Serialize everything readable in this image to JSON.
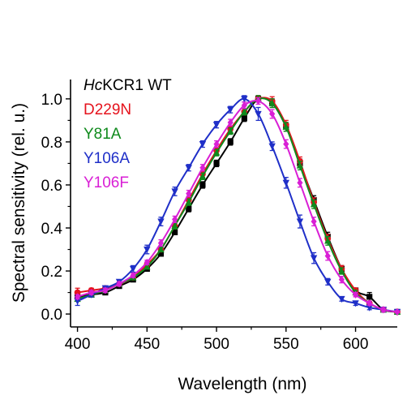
{
  "chart_data": {
    "type": "line",
    "xlabel": "Wavelength (nm)",
    "ylabel": "Spectral sensitivity (rel. u.)",
    "xlim": [
      395,
      630
    ],
    "ylim": [
      -0.06,
      1.09
    ],
    "xticks": [
      400,
      450,
      500,
      550,
      600
    ],
    "yticks": [
      0.0,
      0.2,
      0.4,
      0.6,
      0.8,
      1.0
    ],
    "legend_position": "top-left",
    "series": [
      {
        "name_prefix": "Hc",
        "name_suffix": "KCR1 WT",
        "color": "#000000",
        "marker": "square",
        "points": [
          [
            400,
            0.08,
            0.01
          ],
          [
            410,
            0.09,
            0.01
          ],
          [
            420,
            0.1,
            0.01
          ],
          [
            430,
            0.13,
            0.01
          ],
          [
            440,
            0.16,
            0.01
          ],
          [
            450,
            0.21,
            0.01
          ],
          [
            460,
            0.28,
            0.01
          ],
          [
            470,
            0.38,
            0.01
          ],
          [
            480,
            0.49,
            0.015
          ],
          [
            490,
            0.6,
            0.015
          ],
          [
            500,
            0.7,
            0.015
          ],
          [
            510,
            0.8,
            0.015
          ],
          [
            520,
            0.91,
            0.015
          ],
          [
            530,
            1.0,
            0.015
          ],
          [
            540,
            0.98,
            0.02
          ],
          [
            550,
            0.87,
            0.02
          ],
          [
            560,
            0.7,
            0.02
          ],
          [
            570,
            0.53,
            0.02
          ],
          [
            580,
            0.36,
            0.02
          ],
          [
            590,
            0.21,
            0.015
          ],
          [
            600,
            0.11,
            0.01
          ],
          [
            610,
            0.08,
            0.02
          ],
          [
            620,
            0.02,
            0.01
          ],
          [
            630,
            0.01,
            0.005
          ]
        ]
      },
      {
        "name": "D229N",
        "color": "#e5131d",
        "marker": "circle",
        "points": [
          [
            400,
            0.1,
            0.02
          ],
          [
            410,
            0.11,
            0.01
          ],
          [
            420,
            0.12,
            0.01
          ],
          [
            430,
            0.14,
            0.01
          ],
          [
            440,
            0.17,
            0.01
          ],
          [
            450,
            0.23,
            0.01
          ],
          [
            460,
            0.3,
            0.01
          ],
          [
            470,
            0.41,
            0.015
          ],
          [
            480,
            0.53,
            0.015
          ],
          [
            490,
            0.65,
            0.015
          ],
          [
            500,
            0.76,
            0.015
          ],
          [
            510,
            0.86,
            0.015
          ],
          [
            520,
            0.94,
            0.015
          ],
          [
            530,
            1.0,
            0.015
          ],
          [
            540,
            0.99,
            0.02
          ],
          [
            550,
            0.88,
            0.02
          ],
          [
            560,
            0.71,
            0.02
          ],
          [
            570,
            0.52,
            0.02
          ],
          [
            580,
            0.35,
            0.02
          ],
          [
            590,
            0.21,
            0.015
          ],
          [
            600,
            0.11,
            0.01
          ],
          [
            610,
            0.05,
            0.01
          ],
          [
            620,
            0.02,
            0.01
          ],
          [
            630,
            0.01,
            0.005
          ]
        ]
      },
      {
        "name": "Y81A",
        "color": "#0f8a1c",
        "marker": "triangle",
        "points": [
          [
            400,
            0.07,
            0.01
          ],
          [
            410,
            0.09,
            0.01
          ],
          [
            420,
            0.11,
            0.01
          ],
          [
            430,
            0.14,
            0.01
          ],
          [
            440,
            0.17,
            0.01
          ],
          [
            450,
            0.22,
            0.01
          ],
          [
            460,
            0.3,
            0.01
          ],
          [
            470,
            0.41,
            0.015
          ],
          [
            480,
            0.52,
            0.015
          ],
          [
            490,
            0.64,
            0.015
          ],
          [
            500,
            0.75,
            0.015
          ],
          [
            510,
            0.85,
            0.015
          ],
          [
            520,
            0.94,
            0.015
          ],
          [
            530,
            1.0,
            0.015
          ],
          [
            540,
            0.98,
            0.02
          ],
          [
            550,
            0.87,
            0.02
          ],
          [
            560,
            0.69,
            0.02
          ],
          [
            570,
            0.51,
            0.02
          ],
          [
            580,
            0.34,
            0.02
          ],
          [
            590,
            0.2,
            0.015
          ],
          [
            600,
            0.1,
            0.01
          ],
          [
            610,
            0.05,
            0.01
          ],
          [
            620,
            0.02,
            0.01
          ],
          [
            630,
            0.01,
            0.005
          ]
        ]
      },
      {
        "name": "Y106A",
        "color": "#1f2fc8",
        "marker": "triangle-down",
        "points": [
          [
            400,
            0.06,
            0.02
          ],
          [
            410,
            0.09,
            0.01
          ],
          [
            420,
            0.12,
            0.01
          ],
          [
            430,
            0.15,
            0.01
          ],
          [
            440,
            0.21,
            0.015
          ],
          [
            450,
            0.3,
            0.02
          ],
          [
            460,
            0.43,
            0.02
          ],
          [
            470,
            0.57,
            0.02
          ],
          [
            480,
            0.68,
            0.015
          ],
          [
            490,
            0.79,
            0.015
          ],
          [
            500,
            0.88,
            0.015
          ],
          [
            510,
            0.95,
            0.015
          ],
          [
            520,
            1.0,
            0.015
          ],
          [
            530,
            0.93,
            0.03
          ],
          [
            540,
            0.78,
            0.02
          ],
          [
            550,
            0.61,
            0.025
          ],
          [
            560,
            0.43,
            0.03
          ],
          [
            570,
            0.26,
            0.025
          ],
          [
            580,
            0.15,
            0.015
          ],
          [
            590,
            0.07,
            0.01
          ],
          [
            600,
            0.05,
            0.01
          ],
          [
            610,
            0.03,
            0.01
          ],
          [
            620,
            0.02,
            0.01
          ],
          [
            630,
            0.01,
            0.005
          ]
        ]
      },
      {
        "name": "Y106F",
        "color": "#d91fd5",
        "marker": "diamond",
        "points": [
          [
            400,
            0.08,
            0.01
          ],
          [
            410,
            0.1,
            0.01
          ],
          [
            420,
            0.11,
            0.01
          ],
          [
            430,
            0.14,
            0.01
          ],
          [
            440,
            0.18,
            0.01
          ],
          [
            450,
            0.24,
            0.01
          ],
          [
            460,
            0.33,
            0.015
          ],
          [
            470,
            0.44,
            0.015
          ],
          [
            480,
            0.56,
            0.015
          ],
          [
            490,
            0.68,
            0.015
          ],
          [
            500,
            0.79,
            0.015
          ],
          [
            510,
            0.89,
            0.015
          ],
          [
            520,
            0.97,
            0.015
          ],
          [
            530,
            0.99,
            0.015
          ],
          [
            540,
            0.93,
            0.02
          ],
          [
            550,
            0.79,
            0.02
          ],
          [
            560,
            0.61,
            0.02
          ],
          [
            570,
            0.43,
            0.02
          ],
          [
            580,
            0.27,
            0.02
          ],
          [
            590,
            0.16,
            0.015
          ],
          [
            600,
            0.09,
            0.01
          ],
          [
            610,
            0.05,
            0.01
          ],
          [
            620,
            0.02,
            0.01
          ],
          [
            630,
            0.01,
            0.005
          ]
        ]
      }
    ]
  }
}
